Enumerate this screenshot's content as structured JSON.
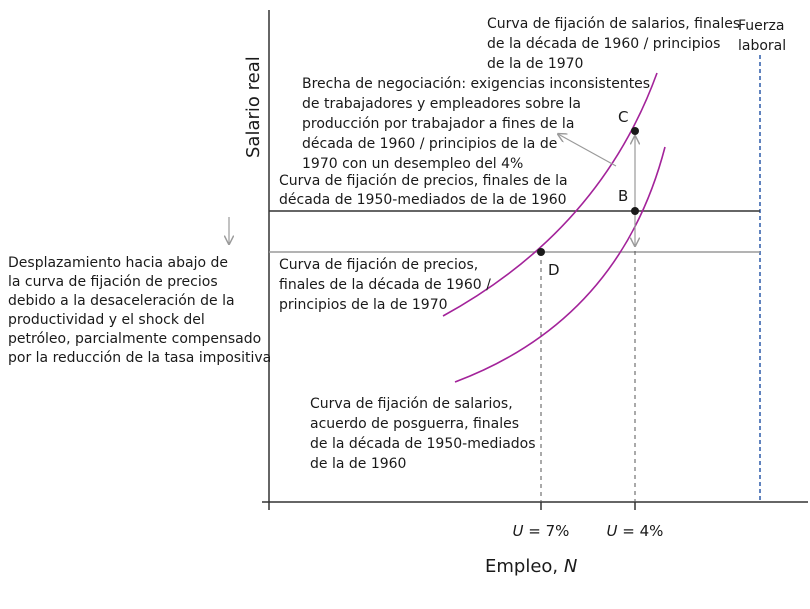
{
  "axes": {
    "y_label": "Salario real",
    "x_label": "Empleo, ",
    "x_label_var": "N",
    "x_ticks": [
      {
        "var": "U",
        "text": " = 7%"
      },
      {
        "var": "U",
        "text": " = 4%"
      }
    ]
  },
  "labels": {
    "labor_force": [
      "Fuerza",
      "laboral"
    ],
    "wage_curve_high": [
      "Curva de fijación de salarios, finales",
      "de la década de 1960 / principios",
      "de la de 1970"
    ],
    "bargaining_gap": [
      "Brecha de negociación: exigencias inconsistentes",
      "de trabajadores y empleadores sobre la",
      "producción por trabajador a fines de la",
      "década de 1960 / principios de la de",
      "1970 con un desempleo del 4%"
    ],
    "price_curve_high": [
      "Curva de fijación de precios, finales de la",
      "década de 1950-mediados de la de 1960"
    ],
    "price_curve_low": [
      "Curva de fijación de precios,",
      "finales de la década de 1960 /",
      "principios de la de 1970"
    ],
    "shift_note": [
      "Desplazamiento hacia abajo de",
      "la curva de fijación de precios",
      "debido a la desaceleración de la",
      "productividad y el shock del",
      "petróleo, parcialmente compensado",
      "por la reducción de la tasa impositiva"
    ],
    "wage_curve_low": [
      "Curva de fijación de salarios,",
      "acuerdo de posguerra, finales",
      "de la década de 1950-mediados",
      "de la de 1960"
    ]
  },
  "points": {
    "B": "B",
    "C": "C",
    "D": "D"
  },
  "colors": {
    "curve": "#a3239a",
    "axis": "#333333",
    "price_high": "#333333",
    "price_low": "#9a9a9a",
    "labor_force": "#2b5aa8",
    "guide": "#555555",
    "arrow": "#9a9a9a"
  }
}
